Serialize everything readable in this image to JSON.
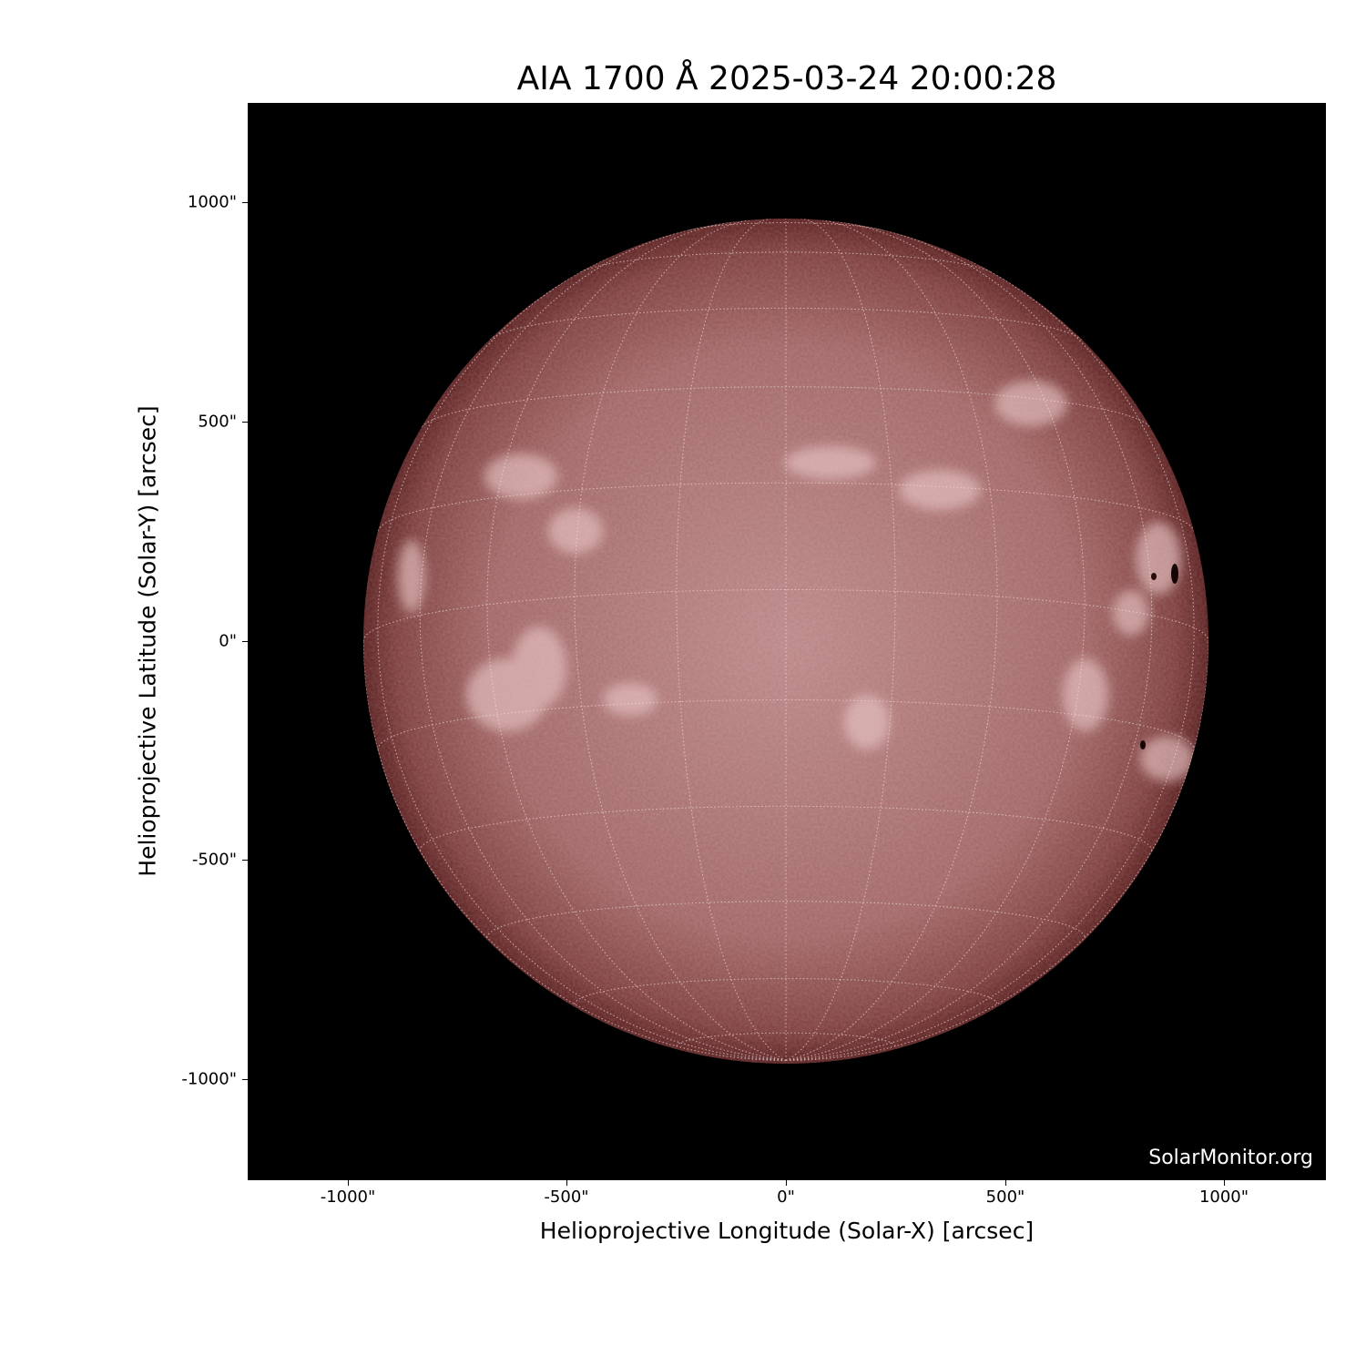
{
  "title": "AIA 1700 Å 2025-03-24 20:00:28",
  "instrument": "AIA",
  "wavelength": "1700 Å",
  "observation_time": "2025-03-24 20:00:28",
  "watermark": "SolarMonitor.org",
  "x_axis": {
    "label": "Helioprojective Longitude (Solar-X) [arcsec]",
    "ticks": [
      "-1000\"",
      "-500\"",
      "0\"",
      "500\"",
      "1000\""
    ],
    "range": [
      -1230,
      1230
    ]
  },
  "y_axis": {
    "label": "Helioprojective Latitude (Solar-Y) [arcsec]",
    "ticks": [
      "1000\"",
      "500\"",
      "0\"",
      "-500\"",
      "-1000\""
    ],
    "range": [
      -1230,
      1230
    ]
  },
  "colors": {
    "background": "#000000",
    "disk_center": "#b98383",
    "disk_limb": "#5a1e1e",
    "grid": "#f0e0e0"
  }
}
